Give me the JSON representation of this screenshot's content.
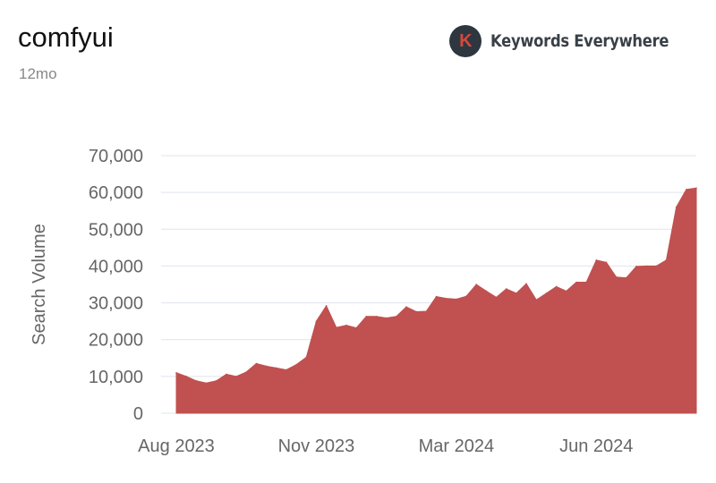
{
  "header": {
    "title": "comfyui",
    "subtitle": "12mo",
    "brand_name": "Keywords Everywhere",
    "brand_logo_letter": "K",
    "brand_logo_icon": "keywords-everywhere-logo-icon"
  },
  "colors": {
    "area_fill": "#c05150",
    "gridline": "#dfe4ec",
    "tick_text": "#666666",
    "brand_dark": "#2e3740",
    "brand_red": "#d04a3e"
  },
  "chart_data": {
    "type": "area",
    "ylabel": "Search Volume",
    "xlabel": "",
    "ylim": [
      0,
      70000
    ],
    "yticks": [
      0,
      10000,
      20000,
      30000,
      40000,
      50000,
      60000,
      70000
    ],
    "ytick_labels": [
      "0",
      "10,000",
      "20,000",
      "30,000",
      "40,000",
      "50,000",
      "60,000",
      "70,000"
    ],
    "xticks": [
      {
        "x": 0,
        "label": "Aug 2023"
      },
      {
        "x": 14,
        "label": "Nov 2023"
      },
      {
        "x": 28,
        "label": "Mar 2024"
      },
      {
        "x": 42,
        "label": "Jun 2024"
      }
    ],
    "grid": true,
    "legend": "none",
    "values": [
      11000,
      10000,
      8800,
      8200,
      8800,
      10600,
      10000,
      11200,
      13500,
      12800,
      12300,
      11800,
      13200,
      15200,
      25000,
      29200,
      23300,
      23900,
      23200,
      26300,
      26300,
      25900,
      26300,
      28900,
      27600,
      27700,
      31700,
      31200,
      31000,
      31800,
      35000,
      33200,
      31500,
      33800,
      32600,
      35200,
      30800,
      32600,
      34400,
      33200,
      35600,
      35600,
      41600,
      41000,
      37000,
      36800,
      39900,
      40000,
      40000,
      41600,
      56000,
      60800,
      61200
    ]
  }
}
